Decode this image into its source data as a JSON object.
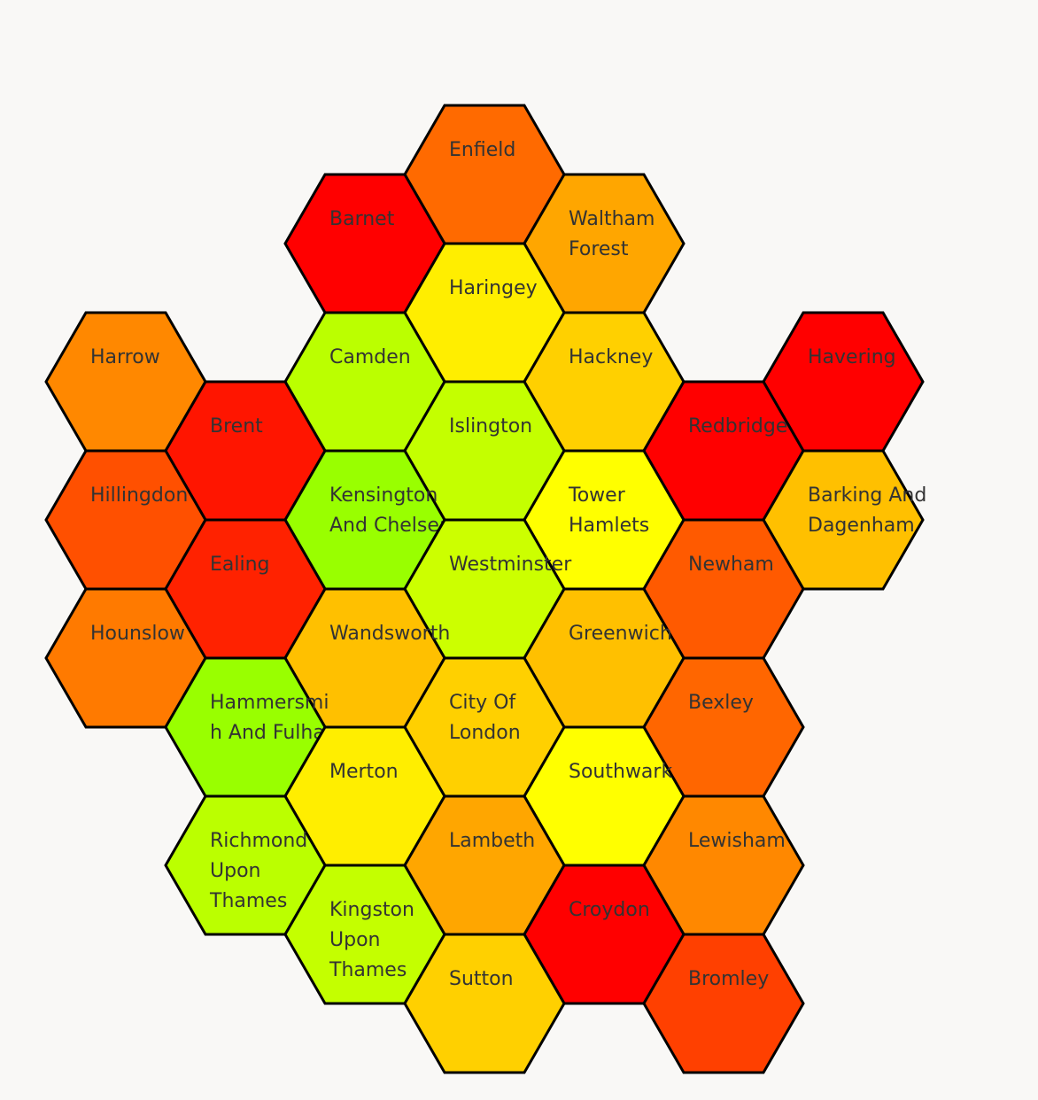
{
  "map": {
    "type": "hex-tile-map",
    "region": "London",
    "boroughs": [
      {
        "name": "Enfield",
        "lines": [
          "Enfield"
        ],
        "col": 3,
        "row": 0,
        "color": "#ff6a00"
      },
      {
        "name": "Barnet",
        "lines": [
          "Barnet"
        ],
        "col": 2,
        "row": 1,
        "color": "#ff0000"
      },
      {
        "name": "Waltham Forest",
        "lines": [
          "Waltham",
          "Forest"
        ],
        "col": 4,
        "row": 1,
        "color": "#ffa600"
      },
      {
        "name": "Haringey",
        "lines": [
          "Haringey"
        ],
        "col": 3,
        "row": 2,
        "color": "#ffee00"
      },
      {
        "name": "Harrow",
        "lines": [
          "Harrow"
        ],
        "col": 0,
        "row": 3,
        "color": "#ff8800"
      },
      {
        "name": "Camden",
        "lines": [
          "Camden"
        ],
        "col": 2,
        "row": 3,
        "color": "#bbff00"
      },
      {
        "name": "Hackney",
        "lines": [
          "Hackney"
        ],
        "col": 4,
        "row": 3,
        "color": "#ffd000"
      },
      {
        "name": "Havering",
        "lines": [
          "Havering"
        ],
        "col": 6,
        "row": 3,
        "color": "#ff0000"
      },
      {
        "name": "Brent",
        "lines": [
          "Brent"
        ],
        "col": 1,
        "row": 4,
        "color": "#ff1500"
      },
      {
        "name": "Islington",
        "lines": [
          "Islington"
        ],
        "col": 3,
        "row": 4,
        "color": "#c4ff00"
      },
      {
        "name": "Redbridge",
        "lines": [
          "Redbridge"
        ],
        "col": 5,
        "row": 4,
        "color": "#ff0000"
      },
      {
        "name": "Hillingdon",
        "lines": [
          "Hillingdon"
        ],
        "col": 0,
        "row": 5,
        "color": "#ff5000"
      },
      {
        "name": "Kensington And Chelsea",
        "lines": [
          "Kensington",
          "And Chelsea"
        ],
        "col": 2,
        "row": 5,
        "color": "#99ff00"
      },
      {
        "name": "Tower Hamlets",
        "lines": [
          "Tower",
          "Hamlets"
        ],
        "col": 4,
        "row": 5,
        "color": "#ffff00"
      },
      {
        "name": "Barking And Dagenham",
        "lines": [
          "Barking And",
          "Dagenham"
        ],
        "col": 6,
        "row": 5,
        "color": "#ffc000"
      },
      {
        "name": "Ealing",
        "lines": [
          "Ealing"
        ],
        "col": 1,
        "row": 6,
        "color": "#ff2200"
      },
      {
        "name": "Westminster",
        "lines": [
          "Westminster"
        ],
        "col": 3,
        "row": 6,
        "color": "#ccff00"
      },
      {
        "name": "Newham",
        "lines": [
          "Newham"
        ],
        "col": 5,
        "row": 6,
        "color": "#ff5a00"
      },
      {
        "name": "Hounslow",
        "lines": [
          "Hounslow"
        ],
        "col": 0,
        "row": 7,
        "color": "#ff7a00"
      },
      {
        "name": "Wandsworth",
        "lines": [
          "Wandsworth"
        ],
        "col": 2,
        "row": 7,
        "color": "#ffc000"
      },
      {
        "name": "Greenwich",
        "lines": [
          "Greenwich"
        ],
        "col": 4,
        "row": 7,
        "color": "#ffc000"
      },
      {
        "name": "Hammersmith And Fulham",
        "lines": [
          "Hammersmi",
          "h And Fulham"
        ],
        "col": 1,
        "row": 8,
        "color": "#99ff00"
      },
      {
        "name": "City Of London",
        "lines": [
          "City Of",
          "London"
        ],
        "col": 3,
        "row": 8,
        "color": "#ffd000"
      },
      {
        "name": "Bexley",
        "lines": [
          "Bexley"
        ],
        "col": 5,
        "row": 8,
        "color": "#ff6600"
      },
      {
        "name": "Merton",
        "lines": [
          "Merton"
        ],
        "col": 2,
        "row": 9,
        "color": "#ffee00"
      },
      {
        "name": "Southwark",
        "lines": [
          "Southwark"
        ],
        "col": 4,
        "row": 9,
        "color": "#ffff00"
      },
      {
        "name": "Richmond Upon Thames",
        "lines": [
          "Richmond",
          "Upon",
          "Thames"
        ],
        "col": 1,
        "row": 10,
        "color": "#bbff00"
      },
      {
        "name": "Lambeth",
        "lines": [
          "Lambeth"
        ],
        "col": 3,
        "row": 10,
        "color": "#ffa600"
      },
      {
        "name": "Lewisham",
        "lines": [
          "Lewisham"
        ],
        "col": 5,
        "row": 10,
        "color": "#ff8800"
      },
      {
        "name": "Kingston Upon Thames",
        "lines": [
          "Kingston",
          "Upon",
          "Thames"
        ],
        "col": 2,
        "row": 11,
        "color": "#c4ff00"
      },
      {
        "name": "Croydon",
        "lines": [
          "Croydon"
        ],
        "col": 4,
        "row": 11,
        "color": "#ff0000"
      },
      {
        "name": "Sutton",
        "lines": [
          "Sutton"
        ],
        "col": 3,
        "row": 12,
        "color": "#ffd000"
      },
      {
        "name": "Bromley",
        "lines": [
          "Bromley"
        ],
        "col": 5,
        "row": 12,
        "color": "#ff4000"
      }
    ]
  }
}
